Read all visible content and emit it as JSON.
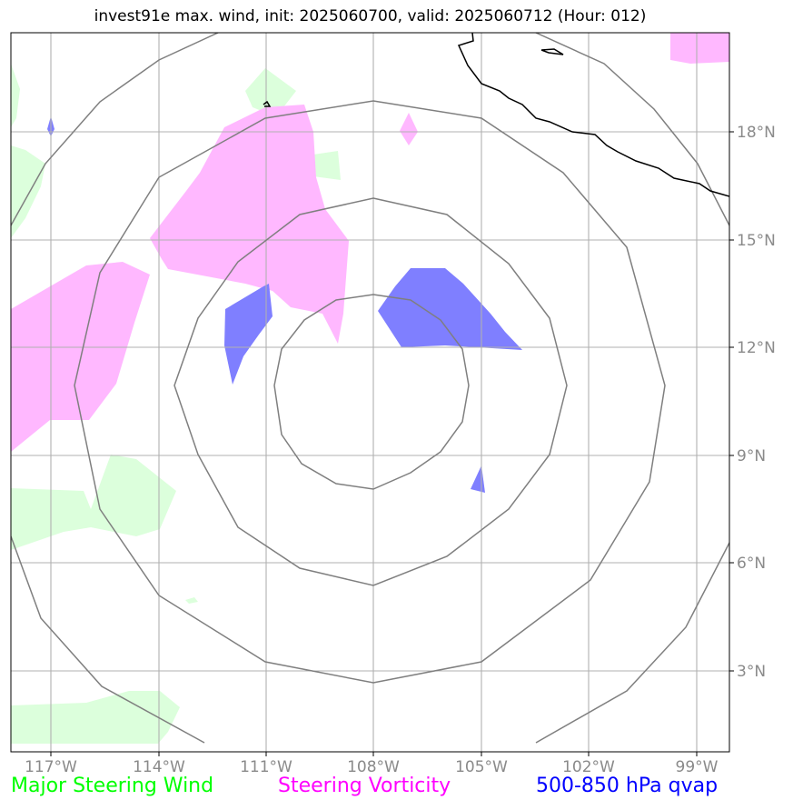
{
  "title": "invest91e max. wind, init: 2025060700, valid: 2025060712 (Hour: 012)",
  "lon_ticks": [
    "117°W",
    "114°W",
    "111°W",
    "108°W",
    "105°W",
    "102°W",
    "99°W"
  ],
  "lat_ticks": [
    "18°N",
    "15°N",
    "12°N",
    "9°N",
    "6°N",
    "3°N"
  ],
  "legend": [
    {
      "label": "Major Steering Wind",
      "color": "#00ff00"
    },
    {
      "label": "Steering Vorticity",
      "color": "#ff00ff"
    },
    {
      "label": "500-850 hPa qvap",
      "color": "#0000ff"
    }
  ],
  "colors": {
    "wind_fill": "#dcffdc",
    "vorticity_fill": "#ffb8ff",
    "qvap_fill": "#7f7fff",
    "range_rings": "#7f7f7f",
    "gridlines": "#b0b0b0",
    "coastline": "#000000"
  }
}
